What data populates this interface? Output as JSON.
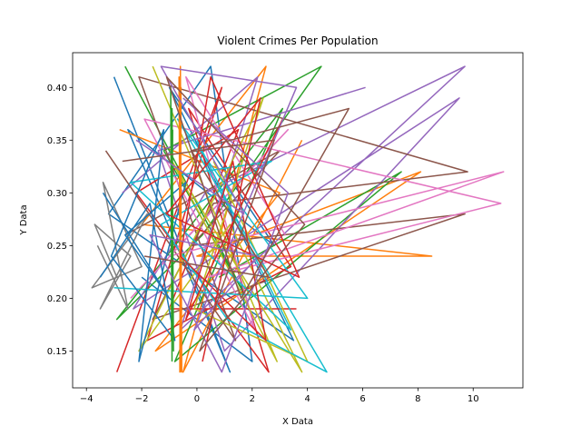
{
  "chart_data": {
    "type": "line",
    "title": "Violent Crimes Per Population",
    "xlabel": "X Data",
    "ylabel": "Y Data",
    "xlim": [
      -4.5,
      11.8
    ],
    "ylim": [
      0.115,
      0.433
    ],
    "xticks": [
      -4,
      -2,
      0,
      2,
      4,
      6,
      8,
      10
    ],
    "xtick_labels": [
      "−4",
      "−2",
      "0",
      "2",
      "4",
      "6",
      "8",
      "10"
    ],
    "yticks": [
      0.15,
      0.2,
      0.25,
      0.3,
      0.35,
      0.4
    ],
    "ytick_labels": [
      "0.15",
      "0.20",
      "0.25",
      "0.30",
      "0.35",
      "0.40"
    ],
    "grid": false,
    "legend": "none",
    "colors": [
      "#1f77b4",
      "#ff7f0e",
      "#2ca02c",
      "#d62728",
      "#9467bd",
      "#8c564b",
      "#e377c2",
      "#7f7f7f",
      "#bcbd22",
      "#17becf"
    ],
    "series": [
      {
        "values": [
          [
            -3.0,
            0.41
          ],
          [
            1.2,
            0.13
          ],
          [
            -2.5,
            0.36
          ],
          [
            2.8,
            0.25
          ],
          [
            -1.0,
            0.4
          ],
          [
            3.5,
            0.16
          ],
          [
            -3.2,
            0.28
          ],
          [
            0.5,
            0.42
          ],
          [
            2.0,
            0.14
          ],
          [
            -2.0,
            0.22
          ]
        ]
      },
      {
        "values": [
          [
            -2.8,
            0.36
          ],
          [
            3.0,
            0.3
          ],
          [
            -1.5,
            0.15
          ],
          [
            8.1,
            0.32
          ],
          [
            0.0,
            0.24
          ],
          [
            8.5,
            0.24
          ],
          [
            -2.0,
            0.27
          ],
          [
            2.5,
            0.42
          ],
          [
            -0.5,
            0.13
          ],
          [
            3.8,
            0.35
          ]
        ]
      },
      {
        "values": [
          [
            -2.6,
            0.42
          ],
          [
            1.8,
            0.2
          ],
          [
            -1.2,
            0.34
          ],
          [
            4.5,
            0.42
          ],
          [
            0.2,
            0.26
          ],
          [
            -2.9,
            0.18
          ],
          [
            3.1,
            0.38
          ],
          [
            -0.8,
            0.14
          ],
          [
            7.4,
            0.32
          ],
          [
            0.8,
            0.22
          ]
        ]
      },
      {
        "values": [
          [
            -2.9,
            0.13
          ],
          [
            0.9,
            0.4
          ],
          [
            -1.8,
            0.16
          ],
          [
            3.4,
            0.23
          ],
          [
            -0.3,
            0.38
          ],
          [
            2.6,
            0.13
          ],
          [
            -2.2,
            0.3
          ],
          [
            1.5,
            0.36
          ],
          [
            -1.0,
            0.19
          ],
          [
            3.6,
            0.19
          ]
        ]
      },
      {
        "values": [
          [
            -2.7,
            0.3
          ],
          [
            2.2,
            0.41
          ],
          [
            -0.6,
            0.17
          ],
          [
            9.7,
            0.42
          ],
          [
            0.3,
            0.3
          ],
          [
            -2.3,
            0.19
          ],
          [
            9.5,
            0.39
          ],
          [
            1.0,
            0.15
          ],
          [
            -1.4,
            0.34
          ],
          [
            6.1,
            0.4
          ]
        ]
      },
      {
        "values": [
          [
            -3.3,
            0.34
          ],
          [
            1.4,
            0.16
          ],
          [
            -2.1,
            0.41
          ],
          [
            9.8,
            0.32
          ],
          [
            0.6,
            0.29
          ],
          [
            -1.6,
            0.18
          ],
          [
            9.7,
            0.28
          ],
          [
            -0.2,
            0.25
          ],
          [
            3.0,
            0.34
          ],
          [
            -2.6,
            0.26
          ]
        ]
      },
      {
        "values": [
          [
            -2.4,
            0.2
          ],
          [
            3.3,
            0.36
          ],
          [
            -1.0,
            0.24
          ],
          [
            11.1,
            0.32
          ],
          [
            0.4,
            0.22
          ],
          [
            11.0,
            0.29
          ],
          [
            -1.9,
            0.37
          ],
          [
            2.1,
            0.17
          ],
          [
            -0.4,
            0.41
          ],
          [
            3.2,
            0.26
          ]
        ]
      },
      {
        "values": [
          [
            -3.6,
            0.25
          ],
          [
            -2.5,
            0.19
          ],
          [
            -3.4,
            0.31
          ],
          [
            -2.0,
            0.23
          ],
          [
            -3.8,
            0.21
          ],
          [
            -1.8,
            0.28
          ],
          [
            -3.5,
            0.19
          ],
          [
            -2.4,
            0.24
          ],
          [
            -3.7,
            0.27
          ],
          [
            -2.9,
            0.22
          ]
        ]
      },
      {
        "values": [
          [
            -1.6,
            0.42
          ],
          [
            2.9,
            0.14
          ],
          [
            -0.9,
            0.33
          ],
          [
            3.8,
            0.13
          ],
          [
            1.2,
            0.27
          ],
          [
            -2.1,
            0.15
          ],
          [
            2.4,
            0.39
          ],
          [
            -0.1,
            0.19
          ],
          [
            4.0,
            0.14
          ],
          [
            0.6,
            0.33
          ]
        ]
      },
      {
        "values": [
          [
            -3.0,
            0.21
          ],
          [
            4.0,
            0.2
          ],
          [
            -0.7,
            0.37
          ],
          [
            4.7,
            0.13
          ],
          [
            1.1,
            0.18
          ],
          [
            -1.3,
            0.27
          ],
          [
            2.7,
            0.33
          ],
          [
            -2.4,
            0.31
          ],
          [
            3.4,
            0.17
          ],
          [
            0.0,
            0.35
          ]
        ]
      },
      {
        "values": [
          [
            -3.4,
            0.3
          ],
          [
            -1.0,
            0.2
          ],
          [
            -2.6,
            0.26
          ],
          [
            -0.4,
            0.31
          ],
          [
            -2.1,
            0.14
          ],
          [
            -1.2,
            0.36
          ],
          [
            -3.1,
            0.24
          ],
          [
            -0.8,
            0.16
          ],
          [
            -1.7,
            0.29
          ],
          [
            -3.5,
            0.22
          ]
        ]
      },
      {
        "values": [
          [
            -0.6,
            0.13
          ],
          [
            -0.6,
            0.42
          ],
          [
            -0.55,
            0.13
          ],
          [
            -0.65,
            0.41
          ],
          [
            -0.6,
            0.14
          ],
          [
            -0.58,
            0.4
          ],
          [
            -0.62,
            0.13
          ],
          [
            -0.6,
            0.33
          ]
        ]
      },
      {
        "values": [
          [
            -0.9,
            0.14
          ],
          [
            -0.95,
            0.4
          ],
          [
            -0.85,
            0.15
          ],
          [
            -0.9,
            0.38
          ],
          [
            -0.92,
            0.16
          ],
          [
            -0.88,
            0.36
          ]
        ]
      },
      {
        "values": [
          [
            0.2,
            0.14
          ],
          [
            2.3,
            0.39
          ],
          [
            -1.1,
            0.28
          ],
          [
            3.7,
            0.22
          ],
          [
            0.5,
            0.41
          ],
          [
            -0.6,
            0.24
          ],
          [
            2.5,
            0.16
          ],
          [
            1.3,
            0.33
          ],
          [
            -0.4,
            0.18
          ],
          [
            3.1,
            0.37
          ]
        ]
      },
      {
        "values": [
          [
            -2.2,
            0.35
          ],
          [
            1.7,
            0.28
          ],
          [
            -1.3,
            0.42
          ],
          [
            3.6,
            0.4
          ],
          [
            -0.1,
            0.17
          ],
          [
            2.2,
            0.24
          ],
          [
            -1.7,
            0.26
          ],
          [
            0.9,
            0.13
          ],
          [
            3.3,
            0.3
          ],
          [
            -0.5,
            0.39
          ]
        ]
      },
      {
        "values": [
          [
            -1.9,
            0.24
          ],
          [
            2.6,
            0.22
          ],
          [
            -0.2,
            0.34
          ],
          [
            5.5,
            0.38
          ],
          [
            1.6,
            0.2
          ],
          [
            -1.1,
            0.41
          ],
          [
            3.9,
            0.27
          ],
          [
            0.1,
            0.15
          ],
          [
            2.8,
            0.35
          ],
          [
            -2.7,
            0.33
          ]
        ]
      }
    ]
  }
}
